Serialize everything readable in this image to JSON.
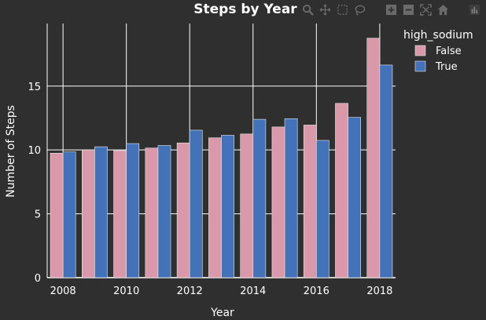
{
  "chart_data": {
    "type": "bar",
    "title": "Steps by Year",
    "xlabel": "Year",
    "ylabel": "Number of Steps",
    "categories": [
      2008,
      2009,
      2010,
      2011,
      2012,
      2013,
      2014,
      2015,
      2016,
      2017,
      2018
    ],
    "x_tick_labels": [
      "2008",
      "2010",
      "2012",
      "2014",
      "2016",
      "2018"
    ],
    "y_tick_labels": [
      "0",
      "5",
      "10",
      "15"
    ],
    "ylim": [
      0,
      19.9
    ],
    "grid": true,
    "legend": {
      "title": "high_sodium",
      "placement": "top-right"
    },
    "series": [
      {
        "name": "False",
        "color": "#d999aa",
        "values": [
          9.75,
          10.0,
          9.95,
          10.15,
          10.55,
          10.95,
          11.25,
          11.8,
          11.95,
          13.65,
          18.75
        ]
      },
      {
        "name": "True",
        "color": "#4472b8",
        "values": [
          9.85,
          10.25,
          10.5,
          10.35,
          11.55,
          11.15,
          12.4,
          12.45,
          10.75,
          12.55,
          16.65
        ]
      }
    ]
  },
  "modebar": {
    "buttons": [
      "zoom-icon",
      "pan-icon",
      "box-select-icon",
      "lasso-select-icon",
      "zoom-in-icon",
      "zoom-out-icon",
      "autoscale-icon",
      "reset-axes-icon",
      "plotly-logo-icon"
    ]
  },
  "colors": {
    "background": "#2f2f2f",
    "text": "#ffffff",
    "grid": "#ffffff"
  }
}
